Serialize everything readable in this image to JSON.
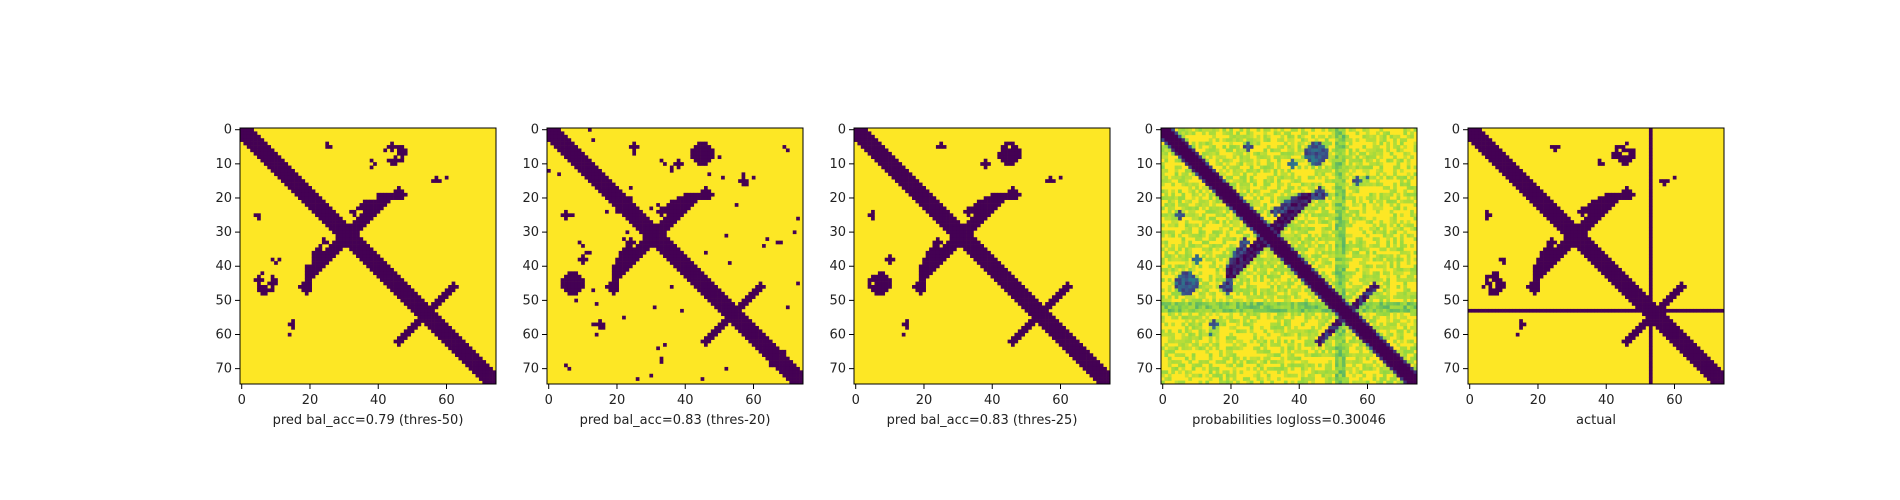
{
  "chart_data": [
    {
      "type": "heatmap",
      "xlabel": "pred bal_acc=0.79 (thres-50)",
      "xlim": [
        0,
        75
      ],
      "ylim": [
        75,
        0
      ],
      "xticks": [
        0,
        20,
        40,
        60
      ],
      "yticks": [
        0,
        10,
        20,
        30,
        40,
        50,
        60,
        70
      ],
      "colormap": "viridis-binary",
      "mode": "t50"
    },
    {
      "type": "heatmap",
      "xlabel": "pred bal_acc=0.83 (thres-20)",
      "xlim": [
        0,
        75
      ],
      "ylim": [
        75,
        0
      ],
      "xticks": [
        0,
        20,
        40,
        60
      ],
      "yticks": [
        0,
        10,
        20,
        30,
        40,
        50,
        60,
        70
      ],
      "colormap": "viridis-binary",
      "mode": "t20"
    },
    {
      "type": "heatmap",
      "xlabel": "pred bal_acc=0.83 (thres-25)",
      "xlim": [
        0,
        75
      ],
      "ylim": [
        75,
        0
      ],
      "xticks": [
        0,
        20,
        40,
        60
      ],
      "yticks": [
        0,
        10,
        20,
        30,
        40,
        50,
        60,
        70
      ],
      "colormap": "viridis-binary",
      "mode": "t25"
    },
    {
      "type": "heatmap",
      "xlabel": "probabilities logloss=0.30046",
      "xlim": [
        0,
        75
      ],
      "ylim": [
        75,
        0
      ],
      "xticks": [
        0,
        20,
        40,
        60
      ],
      "yticks": [
        0,
        10,
        20,
        30,
        40,
        50,
        60,
        70
      ],
      "colormap": "viridis",
      "mode": "prob"
    },
    {
      "type": "heatmap",
      "xlabel": "actual",
      "xlim": [
        0,
        75
      ],
      "ylim": [
        75,
        0
      ],
      "xticks": [
        0,
        20,
        40,
        60
      ],
      "yticks": [
        0,
        10,
        20,
        30,
        40,
        50,
        60,
        70
      ],
      "colormap": "viridis-binary",
      "mode": "actual"
    }
  ],
  "colors": {
    "low": "#440154",
    "high": "#fde725",
    "mid": "#21918c"
  }
}
